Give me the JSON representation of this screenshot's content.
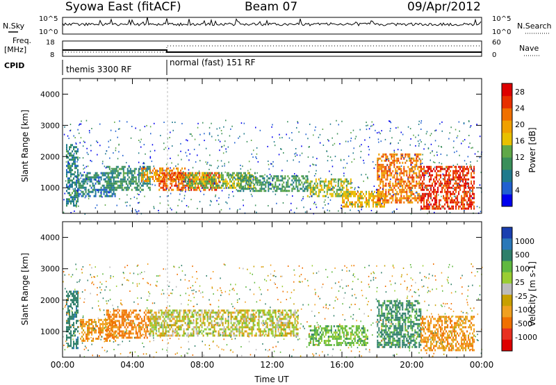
{
  "header": {
    "title": "Syowa East (fitACF)",
    "beam": "Beam 07",
    "date": "09/Apr/2012"
  },
  "status": {
    "nsky_label": "N.Sky",
    "nsearch_label": "N.Search",
    "freq_label_1": "Freq.",
    "freq_label_2": "[MHz]",
    "nave_label": "Nave",
    "cpid_label": "CPID",
    "left_ticks": [
      "10^5",
      "10^0"
    ],
    "right_ticks": [
      "10^5",
      "10^0"
    ],
    "freq_ticks": [
      "18",
      "8"
    ],
    "nave_ticks": [
      "60",
      "0"
    ],
    "cpid_segments": [
      {
        "label": "themis 3300 RF",
        "start_hour": 0,
        "end_hour": 6
      },
      {
        "label": "normal (fast) 151 RF",
        "start_hour": 6,
        "end_hour": 24
      }
    ]
  },
  "chart_data": [
    {
      "type": "heatmap",
      "name": "power",
      "ylabel": "Slant Range [km]",
      "ylim": [
        180,
        4500
      ],
      "yticks": [
        "1000",
        "2000",
        "3000",
        "4000"
      ],
      "xlim": [
        0,
        24
      ],
      "colorbar": {
        "label": "Power [dB]",
        "ticks": [
          "4",
          "8",
          "12",
          "16",
          "20",
          "24",
          "28"
        ],
        "range": [
          0,
          30
        ]
      },
      "regions": [
        {
          "t0": 0.2,
          "t1": 0.9,
          "r0": 400,
          "r1": 2400,
          "value": 9
        },
        {
          "t0": 0.9,
          "t1": 3.0,
          "r0": 700,
          "r1": 1500,
          "value": 8
        },
        {
          "t0": 2.5,
          "t1": 5.0,
          "r0": 900,
          "r1": 1700,
          "value": 10
        },
        {
          "t0": 4.5,
          "t1": 7.0,
          "r0": 1200,
          "r1": 1650,
          "value": 20
        },
        {
          "t0": 5.5,
          "t1": 9.0,
          "r0": 900,
          "r1": 1500,
          "value": 24
        },
        {
          "t0": 7.0,
          "t1": 11.0,
          "r0": 1000,
          "r1": 1500,
          "value": 14
        },
        {
          "t0": 10.0,
          "t1": 14.0,
          "r0": 900,
          "r1": 1400,
          "value": 11
        },
        {
          "t0": 14.0,
          "t1": 16.5,
          "r0": 700,
          "r1": 1300,
          "value": 15
        },
        {
          "t0": 16.0,
          "t1": 18.5,
          "r0": 400,
          "r1": 900,
          "value": 18
        },
        {
          "t0": 18.0,
          "t1": 20.5,
          "r0": 500,
          "r1": 2100,
          "value": 22
        },
        {
          "t0": 20.5,
          "t1": 23.6,
          "r0": 300,
          "r1": 1700,
          "value": 26
        }
      ]
    },
    {
      "type": "heatmap",
      "name": "velocity",
      "ylabel": "Slant Range [km]",
      "ylim": [
        180,
        4500
      ],
      "yticks": [
        "1000",
        "2000",
        "3000",
        "4000"
      ],
      "xlim": [
        0,
        24
      ],
      "xticks": [
        "00:00",
        "04:00",
        "08:00",
        "12:00",
        "16:00",
        "20:00",
        "00:00"
      ],
      "xlabel": "Time UT",
      "colorbar": {
        "label": "Velocity [m s-1]",
        "ticks": [
          "1000",
          "500",
          "100",
          "25",
          "-25",
          "-100",
          "-500",
          "-1000"
        ]
      },
      "regions": [
        {
          "t0": 0.2,
          "t1": 0.9,
          "r0": 500,
          "r1": 2300,
          "value": 400
        },
        {
          "t0": 1.0,
          "t1": 3.0,
          "r0": 700,
          "r1": 1400,
          "value": -200
        },
        {
          "t0": 2.5,
          "t1": 5.0,
          "r0": 800,
          "r1": 1700,
          "value": -300
        },
        {
          "t0": 5.0,
          "t1": 13.5,
          "r0": 900,
          "r1": 1700,
          "value": 0
        },
        {
          "t0": 14.0,
          "t1": 17.5,
          "r0": 600,
          "r1": 1200,
          "value": 150
        },
        {
          "t0": 18.0,
          "t1": 20.5,
          "r0": 500,
          "r1": 2000,
          "value": 300
        },
        {
          "t0": 20.5,
          "t1": 23.6,
          "r0": 400,
          "r1": 1500,
          "value": -200
        }
      ]
    }
  ],
  "colors": {
    "power_scale": [
      "#0000ee",
      "#2060d0",
      "#1f7a8c",
      "#3a8f5a",
      "#60a848",
      "#e8c000",
      "#f0a000",
      "#f07000",
      "#e83000",
      "#dd0000"
    ],
    "velocity_scale": [
      "#1a3fb0",
      "#2a78b8",
      "#2f7f6a",
      "#60b840",
      "#9acd32",
      "#bcbcbc",
      "#c8a000",
      "#f0a020",
      "#f07000",
      "#e83020",
      "#dd0000"
    ]
  }
}
